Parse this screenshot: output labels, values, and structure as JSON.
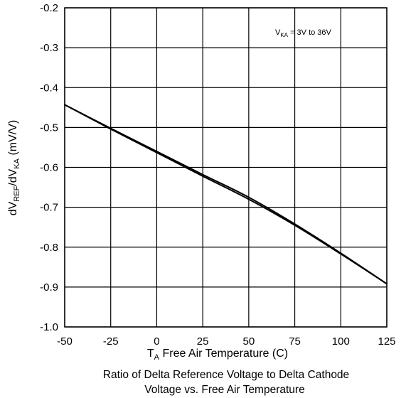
{
  "chart_data": {
    "type": "line",
    "xlim": [
      -50,
      125
    ],
    "ylim": [
      -1.0,
      -0.2
    ],
    "x_ticks": [
      -50,
      -25,
      0,
      25,
      50,
      75,
      100,
      125
    ],
    "y_ticks": [
      -1.0,
      -0.9,
      -0.8,
      -0.7,
      -0.6,
      -0.5,
      -0.4,
      -0.3,
      -0.2
    ],
    "x_tick_labels": [
      "-50",
      "-25",
      "0",
      "25",
      "50",
      "75",
      "100",
      "125"
    ],
    "y_tick_labels": [
      "-1.0",
      "-0.9",
      "-0.8",
      "-0.7",
      "-0.6",
      "-0.5",
      "-0.4",
      "-0.3",
      "-0.2"
    ],
    "grid": true,
    "xlabel": {
      "main": "T",
      "sub": "A",
      "rest": " Free Air Temperature (C)"
    },
    "ylabel": {
      "p1": "dV",
      "s1": "REF",
      "p2": "/dV",
      "s2": "KA",
      "p3": " (mV/V)"
    },
    "caption": [
      "Ratio of Delta Reference Voltage to Delta Cathode",
      "Voltage vs. Free Air Temperature"
    ],
    "annotation": {
      "main": "V",
      "sub": "KA",
      "rest": " = 3V to 36V",
      "placement": "top-right"
    },
    "series": [
      {
        "x": [
          -50,
          -25,
          0,
          25,
          50,
          75,
          100,
          125
        ],
        "y": [
          -0.443,
          -0.502,
          -0.56,
          -0.618,
          -0.675,
          -0.742,
          -0.815,
          -0.892
        ]
      },
      {
        "x": [
          -50,
          -25,
          0,
          25,
          50,
          75,
          100,
          125
        ],
        "y": [
          -0.443,
          -0.504,
          -0.563,
          -0.622,
          -0.68,
          -0.745,
          -0.817,
          -0.892
        ]
      }
    ]
  }
}
